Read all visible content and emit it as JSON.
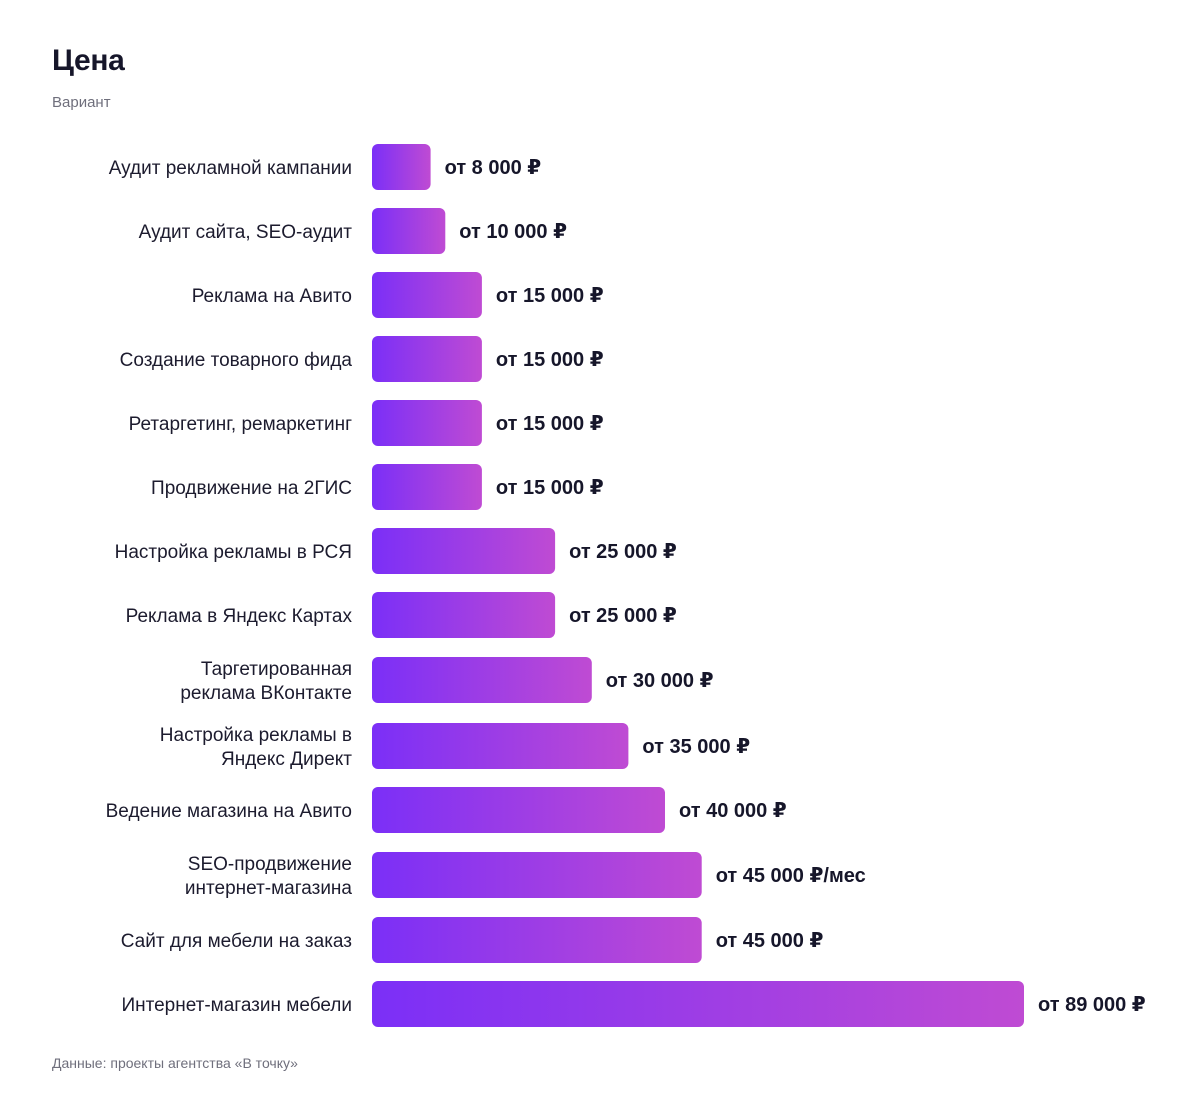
{
  "chart_data": {
    "type": "bar",
    "orientation": "horizontal",
    "title": "Цена",
    "subtitle": "Вариант",
    "footnote": "Данные: проекты агентства «В точку»",
    "xlim": [
      0,
      89000
    ],
    "grid": false,
    "categories": [
      "Аудит рекламной кампании",
      "Аудит сайта, SEO-аудит",
      "Реклама на Авито",
      "Создание товарного фида",
      "Ретаргетинг, ремаркетинг",
      "Продвижение на 2ГИС",
      "Настройка рекламы в РСЯ",
      "Реклама в Яндекс Картах",
      "Таргетированная реклама ВКонтакте",
      "Настройка рекламы в Яндекс Директ",
      "Ведение магазина на Авито",
      "SEO-продвижение интернет-магазина",
      "Сайт для мебели на заказ",
      "Интернет-магазин мебели"
    ],
    "values": [
      8000,
      10000,
      15000,
      15000,
      15000,
      15000,
      25000,
      25000,
      30000,
      35000,
      40000,
      45000,
      45000,
      89000
    ],
    "value_labels": [
      "от 8 000 ₽",
      "от 10 000 ₽",
      "от 15 000 ₽",
      "от 15 000 ₽",
      "от 15 000 ₽",
      "от 15 000 ₽",
      "от 25 000 ₽",
      "от 25 000 ₽",
      "от 30 000 ₽",
      "от 35 000 ₽",
      "от 40 000 ₽",
      "от 45 000 ₽/мес",
      "от 45 000 ₽",
      "от 89 000 ₽"
    ],
    "colors": {
      "bar_start": "#7b2ff7",
      "bar_end": "#bf4bd3",
      "label": "#1c1b2e",
      "value": "#16162a"
    }
  }
}
